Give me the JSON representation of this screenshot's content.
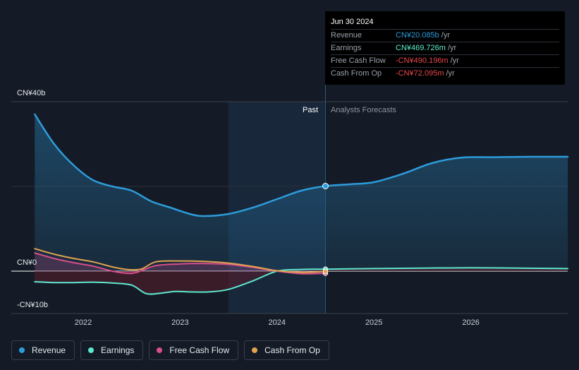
{
  "tooltip": {
    "date": "Jun 30 2024",
    "rows": [
      {
        "label": "Revenue",
        "value": "CN¥20.085b",
        "unit": "/yr",
        "color": "#2d9cdb"
      },
      {
        "label": "Earnings",
        "value": "CN¥469.726m",
        "unit": "/yr",
        "color": "#5ef0d0"
      },
      {
        "label": "Free Cash Flow",
        "value": "-CN¥490.196m",
        "unit": "/yr",
        "color": "#e8474d"
      },
      {
        "label": "Cash From Op",
        "value": "-CN¥72.095m",
        "unit": "/yr",
        "color": "#e8474d"
      }
    ]
  },
  "y_labels": {
    "top": "CN¥40b",
    "zero": "CN¥0",
    "bottom": "-CN¥10b"
  },
  "regions": {
    "past": "Past",
    "forecast": "Analysts Forecasts"
  },
  "x_ticks": [
    "2022",
    "2023",
    "2024",
    "2025",
    "2026"
  ],
  "legend": [
    {
      "label": "Revenue",
      "color": "#2d9cdb"
    },
    {
      "label": "Earnings",
      "color": "#5ee8cf"
    },
    {
      "label": "Free Cash Flow",
      "color": "#d94f8c"
    },
    {
      "label": "Cash From Op",
      "color": "#e0a24f"
    }
  ],
  "chart_data": {
    "type": "line",
    "unit": "CN¥ billions",
    "ylim": [
      -10,
      40
    ],
    "xlim": [
      2021.25,
      2027.0
    ],
    "past_start": 2023.5,
    "divider": 2024.5,
    "series": [
      {
        "name": "Revenue",
        "color": "#2d9cdb",
        "fill": true,
        "points": [
          [
            2021.5,
            37
          ],
          [
            2021.7,
            30
          ],
          [
            2021.9,
            25
          ],
          [
            2022.1,
            21.5
          ],
          [
            2022.3,
            20
          ],
          [
            2022.5,
            19
          ],
          [
            2022.7,
            16.5
          ],
          [
            2022.9,
            15
          ],
          [
            2023.1,
            13.5
          ],
          [
            2023.25,
            13
          ],
          [
            2023.5,
            13.5
          ],
          [
            2023.75,
            15
          ],
          [
            2024.0,
            17
          ],
          [
            2024.25,
            19
          ],
          [
            2024.5,
            20.085
          ],
          [
            2024.75,
            20.5
          ],
          [
            2025.0,
            21
          ],
          [
            2025.3,
            23
          ],
          [
            2025.6,
            25.5
          ],
          [
            2025.9,
            26.8
          ],
          [
            2026.25,
            26.9
          ],
          [
            2026.6,
            27
          ],
          [
            2027.0,
            27
          ]
        ]
      },
      {
        "name": "Earnings",
        "color": "#5ee8cf",
        "fill": true,
        "points": [
          [
            2021.5,
            -2.5
          ],
          [
            2021.7,
            -2.7
          ],
          [
            2021.9,
            -2.7
          ],
          [
            2022.1,
            -2.6
          ],
          [
            2022.3,
            -2.8
          ],
          [
            2022.5,
            -3.3
          ],
          [
            2022.65,
            -5.3
          ],
          [
            2022.8,
            -5.2
          ],
          [
            2022.95,
            -4.8
          ],
          [
            2023.1,
            -4.9
          ],
          [
            2023.3,
            -4.9
          ],
          [
            2023.5,
            -4.3
          ],
          [
            2023.75,
            -2.3
          ],
          [
            2024.0,
            0.0
          ],
          [
            2024.25,
            0.4
          ],
          [
            2024.5,
            0.47
          ],
          [
            2025.0,
            0.6
          ],
          [
            2025.5,
            0.7
          ],
          [
            2026.0,
            0.8
          ],
          [
            2026.5,
            0.7
          ],
          [
            2027.0,
            0.6
          ]
        ]
      },
      {
        "name": "Free Cash Flow",
        "color": "#d94f8c",
        "fill": true,
        "points": [
          [
            2021.5,
            4.3
          ],
          [
            2021.7,
            3.0
          ],
          [
            2021.9,
            2.0
          ],
          [
            2022.1,
            1.2
          ],
          [
            2022.3,
            0.0
          ],
          [
            2022.45,
            -0.5
          ],
          [
            2022.55,
            -0.3
          ],
          [
            2022.75,
            1.3
          ],
          [
            2023.0,
            1.7
          ],
          [
            2023.25,
            1.8
          ],
          [
            2023.5,
            1.6
          ],
          [
            2023.75,
            0.9
          ],
          [
            2024.0,
            0.0
          ],
          [
            2024.25,
            -0.6
          ],
          [
            2024.5,
            -0.49
          ]
        ]
      },
      {
        "name": "Cash From Op",
        "color": "#e0a24f",
        "fill": false,
        "points": [
          [
            2021.5,
            5.3
          ],
          [
            2021.7,
            4.0
          ],
          [
            2021.9,
            3.0
          ],
          [
            2022.1,
            2.2
          ],
          [
            2022.3,
            1.0
          ],
          [
            2022.45,
            0.4
          ],
          [
            2022.6,
            0.5
          ],
          [
            2022.75,
            2.2
          ],
          [
            2023.0,
            2.4
          ],
          [
            2023.25,
            2.3
          ],
          [
            2023.5,
            1.9
          ],
          [
            2023.75,
            1.1
          ],
          [
            2024.0,
            0.1
          ],
          [
            2024.25,
            -0.3
          ],
          [
            2024.5,
            -0.072
          ]
        ]
      }
    ]
  }
}
